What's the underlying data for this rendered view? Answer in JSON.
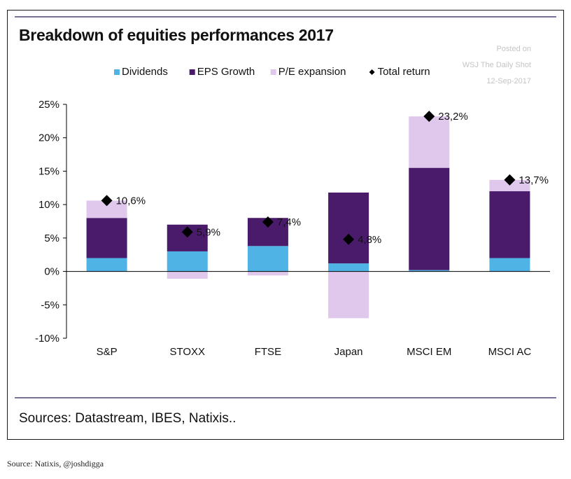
{
  "chart_data": {
    "type": "bar",
    "stacked": true,
    "title": "Breakdown of equities performances 2017",
    "categories": [
      "S&P",
      "STOXX",
      "FTSE",
      "Japan",
      "MSCI EM",
      "MSCI AC"
    ],
    "series": [
      {
        "name": "Dividends",
        "color": "#4fb3e6",
        "values": [
          2.0,
          3.0,
          3.8,
          1.2,
          0.2,
          2.0
        ]
      },
      {
        "name": "EPS Growth",
        "color": "#4a1a6b",
        "values": [
          6.0,
          4.0,
          4.2,
          10.6,
          15.3,
          10.0
        ]
      },
      {
        "name": "P/E expansion",
        "color": "#e0c8ec",
        "values": [
          2.6,
          -1.1,
          -0.6,
          -7.0,
          7.7,
          1.7
        ]
      }
    ],
    "total_return": {
      "name": "Total return",
      "values": [
        10.6,
        5.9,
        7.4,
        4.8,
        23.2,
        13.7
      ],
      "labels": [
        "10,6%",
        "5,9%",
        "7,4%",
        "4,8%",
        "23,2%",
        "13,7%"
      ]
    },
    "ylim": [
      -10,
      25
    ],
    "yticks": [
      25,
      20,
      15,
      10,
      5,
      0,
      -5,
      -10
    ],
    "ytick_labels": [
      "25%",
      "20%",
      "15%",
      "10%",
      "5%",
      "0%",
      "-5%",
      "-10%"
    ],
    "legend_position": "top",
    "grid": false
  },
  "watermark": {
    "line1": "Posted on",
    "line2": "WSJ The Daily Shot",
    "line3": "12-Sep-2017"
  },
  "sources": "Sources: Datastream, IBES, Natixis..",
  "caption": "Source: Natixis, @joshdigga",
  "colors": {
    "accent_rule": "#7a6f9b",
    "axis": "#000000"
  }
}
